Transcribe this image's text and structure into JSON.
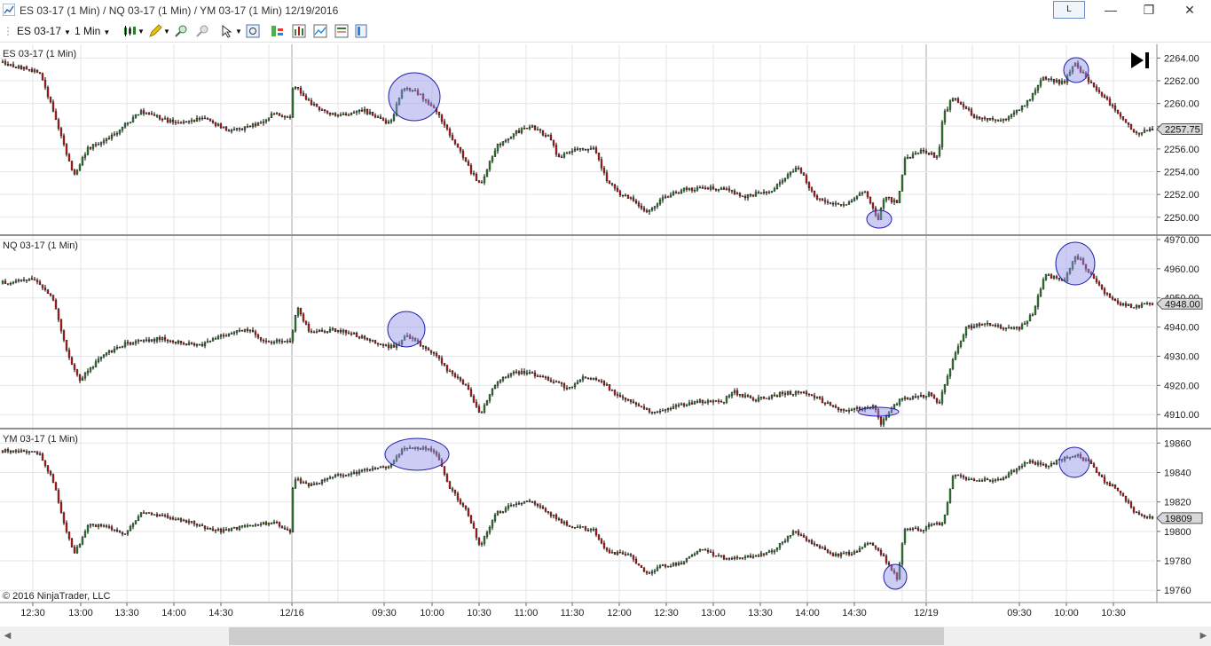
{
  "window": {
    "title": "ES 03-17 (1 Min) / NQ 03-17 (1 Min) / YM 03-17 (1 Min)  12/19/2016",
    "link_button": "L",
    "minimize": "—",
    "restore": "❐",
    "close": "✕"
  },
  "toolbar": {
    "instrument": "ES 03-17",
    "interval": "1 Min",
    "icons": [
      "bar-type-icon",
      "drawing-pencil-icon",
      "zoom-in-icon",
      "zoom-out-icon",
      "cursor-pointer-icon",
      "data-box-icon",
      "strategies-icon",
      "indicators-icon",
      "templates-icon",
      "properties-icon"
    ]
  },
  "copyright": "© 2016 NinjaTrader, LLC",
  "chart_data": [
    {
      "type": "candlestick",
      "title": "ES 03-17 (1 Min)",
      "ylim": [
        2248.5,
        2265.2
      ],
      "yticks": [
        "2264.00",
        "2262.00",
        "2260.00",
        "2258.00",
        "2256.00",
        "2254.00",
        "2252.00",
        "2250.00"
      ],
      "last_price": "2257.75",
      "last": 2257.75,
      "anchors": [
        [
          0,
          2263.6
        ],
        [
          45,
          2262.8
        ],
        [
          60,
          2259.5
        ],
        [
          70,
          2257
        ],
        [
          83,
          2253.6
        ],
        [
          100,
          2256.1
        ],
        [
          125,
          2257
        ],
        [
          140,
          2258
        ],
        [
          160,
          2259.3
        ],
        [
          200,
          2258.2
        ],
        [
          230,
          2258.8
        ],
        [
          260,
          2257.5
        ],
        [
          290,
          2258.2
        ],
        [
          310,
          2259.1
        ],
        [
          328,
          2258.8
        ],
        [
          331,
          2261.8
        ],
        [
          350,
          2260
        ],
        [
          380,
          2258.8
        ],
        [
          410,
          2259.4
        ],
        [
          440,
          2258.2
        ],
        [
          455,
          2261.5
        ],
        [
          470,
          2261
        ],
        [
          490,
          2259.6
        ],
        [
          510,
          2257
        ],
        [
          530,
          2254.2
        ],
        [
          542,
          2252.8
        ],
        [
          560,
          2256.2
        ],
        [
          580,
          2257.4
        ],
        [
          600,
          2258
        ],
        [
          620,
          2257
        ],
        [
          630,
          2255.2
        ],
        [
          650,
          2256
        ],
        [
          670,
          2256
        ],
        [
          683,
          2253.5
        ],
        [
          700,
          2252
        ],
        [
          715,
          2251.5
        ],
        [
          730,
          2250.4
        ],
        [
          745,
          2251.6
        ],
        [
          770,
          2252.4
        ],
        [
          790,
          2252.6
        ],
        [
          820,
          2252.4
        ],
        [
          840,
          2251.8
        ],
        [
          870,
          2252.4
        ],
        [
          900,
          2254.5
        ],
        [
          920,
          2251.6
        ],
        [
          950,
          2251
        ],
        [
          975,
          2252.2
        ],
        [
          990,
          2249.8
        ],
        [
          998,
          2251.8
        ],
        [
          1012,
          2251.2
        ],
        [
          1020,
          2255
        ],
        [
          1040,
          2256
        ],
        [
          1058,
          2255.2
        ],
        [
          1063,
          2258.8
        ],
        [
          1075,
          2260.6
        ],
        [
          1100,
          2258.8
        ],
        [
          1130,
          2258.5
        ],
        [
          1160,
          2260.2
        ],
        [
          1175,
          2262.2
        ],
        [
          1200,
          2261.8
        ],
        [
          1212,
          2263.5
        ],
        [
          1228,
          2262
        ],
        [
          1245,
          2260.6
        ],
        [
          1262,
          2259
        ],
        [
          1280,
          2257.3
        ],
        [
          1300,
          2257.7
        ]
      ],
      "highlights": [
        [
          467,
          109,
          29,
          27
        ],
        [
          1213,
          79,
          14,
          14
        ],
        [
          991,
          247,
          14,
          10
        ]
      ]
    },
    {
      "type": "candlestick",
      "title": "NQ 03-17 (1 Min)",
      "ylim": [
        4905.5,
        4971.2
      ],
      "yticks": [
        "4970.00",
        "4960.00",
        "4950.00",
        "4940.00",
        "4930.00",
        "4920.00",
        "4910.00"
      ],
      "last_price": "4948.00",
      "last": 4948.0,
      "anchors": [
        [
          0,
          4955
        ],
        [
          40,
          4956.5
        ],
        [
          60,
          4950
        ],
        [
          75,
          4932
        ],
        [
          90,
          4922
        ],
        [
          100,
          4925
        ],
        [
          120,
          4931
        ],
        [
          140,
          4934
        ],
        [
          160,
          4935.5
        ],
        [
          185,
          4936
        ],
        [
          205,
          4934.5
        ],
        [
          230,
          4934
        ],
        [
          255,
          4937.5
        ],
        [
          280,
          4939
        ],
        [
          300,
          4935
        ],
        [
          328,
          4935
        ],
        [
          335,
          4947
        ],
        [
          350,
          4938
        ],
        [
          380,
          4939
        ],
        [
          400,
          4937.5
        ],
        [
          420,
          4935
        ],
        [
          445,
          4933
        ],
        [
          458,
          4937
        ],
        [
          475,
          4934
        ],
        [
          490,
          4931
        ],
        [
          505,
          4925
        ],
        [
          525,
          4920
        ],
        [
          542,
          4910.5
        ],
        [
          560,
          4921
        ],
        [
          580,
          4924.5
        ],
        [
          600,
          4924
        ],
        [
          620,
          4922
        ],
        [
          640,
          4919
        ],
        [
          660,
          4923
        ],
        [
          680,
          4921
        ],
        [
          695,
          4917
        ],
        [
          715,
          4914
        ],
        [
          735,
          4910.5
        ],
        [
          760,
          4913
        ],
        [
          790,
          4914.5
        ],
        [
          815,
          4914
        ],
        [
          825,
          4918
        ],
        [
          850,
          4915
        ],
        [
          880,
          4917
        ],
        [
          905,
          4918
        ],
        [
          925,
          4915
        ],
        [
          950,
          4911
        ],
        [
          970,
          4912
        ],
        [
          985,
          4913
        ],
        [
          993,
          4907
        ],
        [
          1000,
          4910
        ],
        [
          1015,
          4915
        ],
        [
          1035,
          4916
        ],
        [
          1050,
          4917
        ],
        [
          1058,
          4913
        ],
        [
          1070,
          4925
        ],
        [
          1090,
          4940
        ],
        [
          1110,
          4941
        ],
        [
          1130,
          4940
        ],
        [
          1150,
          4939.5
        ],
        [
          1165,
          4945
        ],
        [
          1178,
          4958
        ],
        [
          1200,
          4955.5
        ],
        [
          1213,
          4965
        ],
        [
          1230,
          4958
        ],
        [
          1245,
          4952
        ],
        [
          1260,
          4948
        ],
        [
          1280,
          4947
        ],
        [
          1300,
          4948
        ]
      ],
      "highlights": [
        [
          458,
          371,
          21,
          20
        ],
        [
          1212,
          297,
          22,
          24
        ],
        [
          990,
          464,
          23,
          5
        ]
      ]
    },
    {
      "type": "candlestick",
      "title": "YM 03-17 (1 Min)",
      "ylim": [
        19752.3,
        19869.2
      ],
      "yticks": [
        "19860",
        "19840",
        "19820",
        "19800",
        "19780",
        "19760"
      ],
      "last_price": "19809",
      "last": 19809,
      "anchors": [
        [
          0,
          19855
        ],
        [
          45,
          19853
        ],
        [
          60,
          19835
        ],
        [
          75,
          19800
        ],
        [
          85,
          19785
        ],
        [
          100,
          19805
        ],
        [
          125,
          19802
        ],
        [
          140,
          19798
        ],
        [
          160,
          19813
        ],
        [
          190,
          19810
        ],
        [
          220,
          19805
        ],
        [
          250,
          19800
        ],
        [
          280,
          19804
        ],
        [
          310,
          19806
        ],
        [
          328,
          19799
        ],
        [
          331,
          19836
        ],
        [
          350,
          19831
        ],
        [
          380,
          19838
        ],
        [
          410,
          19841
        ],
        [
          440,
          19844
        ],
        [
          455,
          19856
        ],
        [
          480,
          19857
        ],
        [
          492,
          19854
        ],
        [
          505,
          19832
        ],
        [
          525,
          19815
        ],
        [
          542,
          19790
        ],
        [
          560,
          19812
        ],
        [
          580,
          19819
        ],
        [
          600,
          19821
        ],
        [
          620,
          19812
        ],
        [
          640,
          19804
        ],
        [
          670,
          19801
        ],
        [
          685,
          19786
        ],
        [
          710,
          19784
        ],
        [
          730,
          19771
        ],
        [
          745,
          19776
        ],
        [
          770,
          19779
        ],
        [
          790,
          19788
        ],
        [
          820,
          19781
        ],
        [
          840,
          19782
        ],
        [
          870,
          19786
        ],
        [
          895,
          19800
        ],
        [
          915,
          19792
        ],
        [
          940,
          19784
        ],
        [
          965,
          19786
        ],
        [
          980,
          19792
        ],
        [
          995,
          19784
        ],
        [
          1012,
          19768
        ],
        [
          1020,
          19802
        ],
        [
          1040,
          19801
        ],
        [
          1055,
          19806
        ],
        [
          1063,
          19805
        ],
        [
          1075,
          19839
        ],
        [
          1100,
          19834
        ],
        [
          1130,
          19836
        ],
        [
          1160,
          19848
        ],
        [
          1180,
          19844
        ],
        [
          1200,
          19850
        ],
        [
          1213,
          19852
        ],
        [
          1230,
          19846
        ],
        [
          1245,
          19834
        ],
        [
          1262,
          19828
        ],
        [
          1280,
          19812
        ],
        [
          1300,
          19809
        ]
      ],
      "highlights": [
        [
          470,
          512,
          36,
          18
        ],
        [
          1211,
          521,
          17,
          17
        ],
        [
          1009,
          650,
          13,
          14
        ]
      ]
    }
  ],
  "x_axis": {
    "labels": [
      {
        "text": "12:30",
        "x": 37
      },
      {
        "text": "13:00",
        "x": 91
      },
      {
        "text": "13:30",
        "x": 143
      },
      {
        "text": "14:00",
        "x": 196
      },
      {
        "text": "14:30",
        "x": 249
      },
      {
        "text": "12/16",
        "x": 329
      },
      {
        "text": "09:30",
        "x": 433
      },
      {
        "text": "10:00",
        "x": 487
      },
      {
        "text": "10:30",
        "x": 540
      },
      {
        "text": "11:00",
        "x": 593
      },
      {
        "text": "11:30",
        "x": 645
      },
      {
        "text": "12:00",
        "x": 698
      },
      {
        "text": "12:30",
        "x": 751
      },
      {
        "text": "13:00",
        "x": 804
      },
      {
        "text": "13:30",
        "x": 857
      },
      {
        "text": "14:00",
        "x": 910
      },
      {
        "text": "14:30",
        "x": 963
      },
      {
        "text": "12/19",
        "x": 1044
      },
      {
        "text": "09:30",
        "x": 1149
      },
      {
        "text": "10:00",
        "x": 1202
      },
      {
        "text": "10:30",
        "x": 1255
      }
    ]
  },
  "colors": {
    "up_body": "#2e7d32",
    "down_body": "#b71c1c",
    "wick": "#000000",
    "highlight_fill": "#8f8fe8",
    "highlight_stroke": "#1f1fb0",
    "grid": "#e5e5e5"
  }
}
